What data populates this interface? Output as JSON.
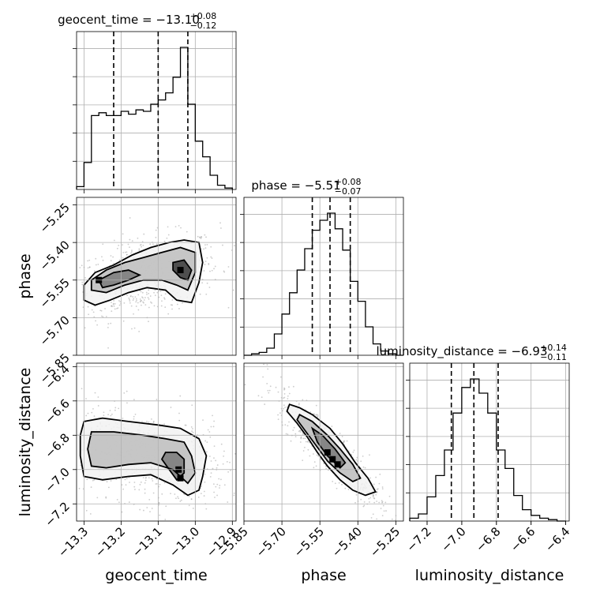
{
  "chart_data": {
    "type": "corner",
    "parameters": [
      {
        "name": "geocent_time",
        "axis_label": "geocent_time",
        "range": [
          -13.32,
          -12.89
        ],
        "ticks": [
          -13.3,
          -13.2,
          -13.1,
          -13.0,
          -12.9
        ],
        "tick_labels": [
          "−13.3",
          "−13.2",
          "−13.1",
          "−13.0",
          "−12.9"
        ],
        "title": {
          "main": "geocent_time = −13.10",
          "sup": "+0.08",
          "sub": "−0.12"
        },
        "quantiles": [
          -13.22,
          -13.1,
          -13.02
        ]
      },
      {
        "name": "phase",
        "axis_label": "phase",
        "range": [
          -5.85,
          -5.22
        ],
        "ticks": [
          -5.85,
          -5.7,
          -5.55,
          -5.4,
          -5.25
        ],
        "tick_labels": [
          "−5.85",
          "−5.70",
          "−5.55",
          "−5.40",
          "−5.25"
        ],
        "title": {
          "main": "phase = −5.51",
          "sup": "+0.08",
          "sub": "−0.07"
        },
        "quantiles": [
          -5.58,
          -5.51,
          -5.43
        ]
      },
      {
        "name": "luminosity_distance",
        "axis_label": "luminosity_distance",
        "range": [
          -7.3,
          -6.38
        ],
        "ticks": [
          -7.2,
          -7.0,
          -6.8,
          -6.6,
          -6.4
        ],
        "tick_labels": [
          "−7.2",
          "−7.0",
          "−6.8",
          "−6.6",
          "−6.4"
        ],
        "title": {
          "main": "luminosity_distance = −6.93",
          "sup": "+0.14",
          "sub": "−0.11"
        },
        "quantiles": [
          -7.06,
          -6.93,
          -6.79
        ]
      }
    ],
    "histograms": [
      {
        "param": "geocent_time",
        "bin_edges": [
          -13.32,
          -13.3,
          -13.28,
          -13.26,
          -13.24,
          -13.22,
          -13.2,
          -13.18,
          -13.16,
          -13.14,
          -13.12,
          -13.1,
          -13.08,
          -13.06,
          -13.04,
          -13.02,
          -13.0,
          -12.98,
          -12.96,
          -12.94,
          -12.92,
          -12.9
        ],
        "heights": [
          0.02,
          0.19,
          0.52,
          0.54,
          0.52,
          0.52,
          0.55,
          0.53,
          0.56,
          0.55,
          0.6,
          0.63,
          0.68,
          0.79,
          1.0,
          0.6,
          0.34,
          0.23,
          0.1,
          0.03,
          0.01
        ]
      },
      {
        "param": "phase",
        "bin_edges": [
          -5.85,
          -5.82,
          -5.79,
          -5.76,
          -5.73,
          -5.7,
          -5.67,
          -5.64,
          -5.61,
          -5.58,
          -5.55,
          -5.52,
          -5.49,
          -5.46,
          -5.43,
          -5.4,
          -5.37,
          -5.34,
          -5.31,
          -5.28,
          -5.25,
          -5.22
        ],
        "heights": [
          0.0,
          0.01,
          0.02,
          0.05,
          0.15,
          0.29,
          0.44,
          0.6,
          0.75,
          0.88,
          0.95,
          1.0,
          0.89,
          0.74,
          0.52,
          0.38,
          0.2,
          0.08,
          0.03,
          0.01,
          0.0
        ]
      },
      {
        "param": "luminosity_distance",
        "bin_edges": [
          -7.3,
          -7.25,
          -7.2,
          -7.15,
          -7.1,
          -7.05,
          -7.0,
          -6.95,
          -6.9,
          -6.85,
          -6.8,
          -6.75,
          -6.7,
          -6.65,
          -6.6,
          -6.55,
          -6.5,
          -6.45,
          -6.4
        ],
        "heights": [
          0.02,
          0.05,
          0.17,
          0.32,
          0.5,
          0.76,
          0.94,
          1.0,
          0.9,
          0.76,
          0.5,
          0.37,
          0.18,
          0.08,
          0.04,
          0.02,
          0.01,
          0.0
        ]
      }
    ],
    "joint_2d": [
      {
        "x": "geocent_time",
        "y": "phase",
        "contours": [
          [
            [
              -13.3,
              -5.57
            ],
            [
              -13.27,
              -5.52
            ],
            [
              -13.22,
              -5.49
            ],
            [
              -13.17,
              -5.45
            ],
            [
              -13.12,
              -5.42
            ],
            [
              -13.07,
              -5.4
            ],
            [
              -13.03,
              -5.39
            ],
            [
              -12.99,
              -5.4
            ],
            [
              -12.98,
              -5.48
            ],
            [
              -12.99,
              -5.56
            ],
            [
              -13.01,
              -5.64
            ],
            [
              -13.05,
              -5.63
            ],
            [
              -13.08,
              -5.59
            ],
            [
              -13.13,
              -5.58
            ],
            [
              -13.18,
              -5.6
            ],
            [
              -13.23,
              -5.63
            ],
            [
              -13.27,
              -5.65
            ],
            [
              -13.3,
              -5.63
            ]
          ],
          [
            [
              -13.28,
              -5.55
            ],
            [
              -13.24,
              -5.51
            ],
            [
              -13.19,
              -5.48
            ],
            [
              -13.14,
              -5.46
            ],
            [
              -13.09,
              -5.44
            ],
            [
              -13.04,
              -5.42
            ],
            [
              -13.0,
              -5.44
            ],
            [
              -13.0,
              -5.52
            ],
            [
              -13.02,
              -5.59
            ],
            [
              -13.05,
              -5.57
            ],
            [
              -13.09,
              -5.55
            ],
            [
              -13.14,
              -5.55
            ],
            [
              -13.19,
              -5.57
            ],
            [
              -13.24,
              -5.6
            ],
            [
              -13.28,
              -5.59
            ]
          ],
          [
            [
              -13.26,
              -5.55
            ],
            [
              -13.22,
              -5.52
            ],
            [
              -13.18,
              -5.51
            ],
            [
              -13.15,
              -5.53
            ],
            [
              -13.18,
              -5.55
            ],
            [
              -13.22,
              -5.57
            ],
            [
              -13.25,
              -5.58
            ]
          ],
          [
            [
              -13.06,
              -5.48
            ],
            [
              -13.03,
              -5.47
            ],
            [
              -13.01,
              -5.51
            ],
            [
              -13.02,
              -5.55
            ],
            [
              -13.04,
              -5.54
            ],
            [
              -13.06,
              -5.51
            ]
          ]
        ],
        "peaks": [
          [
            -13.04,
            -5.51
          ],
          [
            -13.26,
            -5.55
          ]
        ]
      },
      {
        "x": "geocent_time",
        "y": "luminosity_distance",
        "contours": [
          [
            [
              -13.3,
              -6.72
            ],
            [
              -13.25,
              -6.7
            ],
            [
              -13.18,
              -6.72
            ],
            [
              -13.1,
              -6.74
            ],
            [
              -13.04,
              -6.76
            ],
            [
              -12.99,
              -6.82
            ],
            [
              -12.97,
              -6.92
            ],
            [
              -12.98,
              -7.04
            ],
            [
              -12.99,
              -7.12
            ],
            [
              -13.02,
              -7.15
            ],
            [
              -13.06,
              -7.09
            ],
            [
              -13.12,
              -7.03
            ],
            [
              -13.18,
              -7.04
            ],
            [
              -13.25,
              -7.06
            ],
            [
              -13.3,
              -7.04
            ],
            [
              -13.31,
              -6.92
            ],
            [
              -13.31,
              -6.8
            ]
          ],
          [
            [
              -13.28,
              -6.78
            ],
            [
              -13.22,
              -6.78
            ],
            [
              -13.14,
              -6.8
            ],
            [
              -13.08,
              -6.82
            ],
            [
              -13.03,
              -6.84
            ],
            [
              -13.01,
              -6.92
            ],
            [
              -13.0,
              -7.02
            ],
            [
              -13.02,
              -7.08
            ],
            [
              -13.06,
              -7.0
            ],
            [
              -13.12,
              -6.96
            ],
            [
              -13.18,
              -6.97
            ],
            [
              -13.24,
              -6.99
            ],
            [
              -13.28,
              -6.98
            ],
            [
              -13.29,
              -6.88
            ]
          ],
          [
            [
              -13.08,
              -6.9
            ],
            [
              -13.05,
              -6.9
            ],
            [
              -13.03,
              -6.94
            ],
            [
              -13.03,
              -7.02
            ],
            [
              -13.05,
              -7.06
            ],
            [
              -13.07,
              -7.0
            ],
            [
              -13.09,
              -6.94
            ]
          ]
        ],
        "peaks": [
          [
            -13.04,
            -7.05
          ],
          [
            -13.045,
            -7.0
          ]
        ]
      },
      {
        "x": "phase",
        "y": "luminosity_distance",
        "contours": [
          [
            [
              -5.67,
              -6.62
            ],
            [
              -5.63,
              -6.64
            ],
            [
              -5.58,
              -6.68
            ],
            [
              -5.51,
              -6.76
            ],
            [
              -5.46,
              -6.85
            ],
            [
              -5.41,
              -6.96
            ],
            [
              -5.36,
              -7.05
            ],
            [
              -5.33,
              -7.13
            ],
            [
              -5.37,
              -7.15
            ],
            [
              -5.42,
              -7.12
            ],
            [
              -5.47,
              -7.06
            ],
            [
              -5.52,
              -6.98
            ],
            [
              -5.56,
              -6.9
            ],
            [
              -5.6,
              -6.81
            ],
            [
              -5.64,
              -6.73
            ],
            [
              -5.68,
              -6.66
            ]
          ],
          [
            [
              -5.63,
              -6.68
            ],
            [
              -5.58,
              -6.72
            ],
            [
              -5.52,
              -6.8
            ],
            [
              -5.47,
              -6.88
            ],
            [
              -5.42,
              -6.97
            ],
            [
              -5.39,
              -7.05
            ],
            [
              -5.42,
              -7.07
            ],
            [
              -5.47,
              -7.02
            ],
            [
              -5.52,
              -6.95
            ],
            [
              -5.56,
              -6.87
            ],
            [
              -5.6,
              -6.79
            ],
            [
              -5.64,
              -6.71
            ]
          ],
          [
            [
              -5.58,
              -6.76
            ],
            [
              -5.54,
              -6.8
            ],
            [
              -5.49,
              -6.88
            ],
            [
              -5.45,
              -6.96
            ],
            [
              -5.47,
              -6.99
            ],
            [
              -5.52,
              -6.92
            ],
            [
              -5.56,
              -6.84
            ]
          ]
        ],
        "peaks": [
          [
            -5.5,
            -6.94
          ],
          [
            -5.52,
            -6.9
          ],
          [
            -5.48,
            -6.97
          ]
        ]
      }
    ],
    "grid": true
  }
}
